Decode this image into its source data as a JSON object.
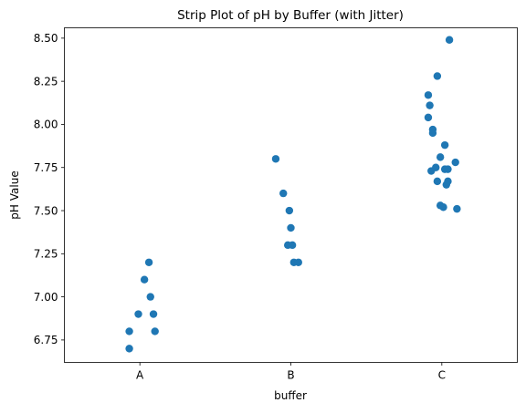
{
  "chart_data": {
    "type": "scatter",
    "title": "Strip Plot of pH by Buffer (with Jitter)",
    "xlabel": "buffer",
    "ylabel": "pH Value",
    "categories": [
      "A",
      "B",
      "C"
    ],
    "ylim": [
      6.62,
      8.56
    ],
    "yticks": [
      6.75,
      7.0,
      7.25,
      7.5,
      7.75,
      8.0,
      8.25,
      8.5
    ],
    "ytick_labels": [
      "6.75",
      "7.00",
      "7.25",
      "7.50",
      "7.75",
      "8.00",
      "8.25",
      "8.50"
    ],
    "grid": false,
    "point_color": "#1f77b4",
    "points": [
      {
        "category": "A",
        "jitter": -0.07,
        "y": 6.8
      },
      {
        "category": "A",
        "jitter": -0.07,
        "y": 6.7
      },
      {
        "category": "A",
        "jitter": -0.01,
        "y": 6.9
      },
      {
        "category": "A",
        "jitter": 0.03,
        "y": 7.1
      },
      {
        "category": "A",
        "jitter": 0.06,
        "y": 7.2
      },
      {
        "category": "A",
        "jitter": 0.07,
        "y": 7.0
      },
      {
        "category": "A",
        "jitter": 0.09,
        "y": 6.9
      },
      {
        "category": "A",
        "jitter": 0.1,
        "y": 6.8
      },
      {
        "category": "B",
        "jitter": -0.1,
        "y": 7.8
      },
      {
        "category": "B",
        "jitter": -0.05,
        "y": 7.6
      },
      {
        "category": "B",
        "jitter": -0.01,
        "y": 7.5
      },
      {
        "category": "B",
        "jitter": 0.0,
        "y": 7.4
      },
      {
        "category": "B",
        "jitter": -0.02,
        "y": 7.3
      },
      {
        "category": "B",
        "jitter": 0.01,
        "y": 7.3
      },
      {
        "category": "B",
        "jitter": 0.02,
        "y": 7.2
      },
      {
        "category": "B",
        "jitter": 0.05,
        "y": 7.2
      },
      {
        "category": "C",
        "jitter": 0.05,
        "y": 8.49
      },
      {
        "category": "C",
        "jitter": -0.03,
        "y": 8.28
      },
      {
        "category": "C",
        "jitter": -0.09,
        "y": 8.17
      },
      {
        "category": "C",
        "jitter": -0.08,
        "y": 8.11
      },
      {
        "category": "C",
        "jitter": -0.09,
        "y": 8.04
      },
      {
        "category": "C",
        "jitter": -0.06,
        "y": 7.97
      },
      {
        "category": "C",
        "jitter": -0.06,
        "y": 7.95
      },
      {
        "category": "C",
        "jitter": 0.02,
        "y": 7.88
      },
      {
        "category": "C",
        "jitter": -0.01,
        "y": 7.81
      },
      {
        "category": "C",
        "jitter": 0.09,
        "y": 7.78
      },
      {
        "category": "C",
        "jitter": -0.04,
        "y": 7.75
      },
      {
        "category": "C",
        "jitter": 0.02,
        "y": 7.74
      },
      {
        "category": "C",
        "jitter": 0.04,
        "y": 7.74
      },
      {
        "category": "C",
        "jitter": -0.07,
        "y": 7.73
      },
      {
        "category": "C",
        "jitter": -0.03,
        "y": 7.67
      },
      {
        "category": "C",
        "jitter": 0.04,
        "y": 7.67
      },
      {
        "category": "C",
        "jitter": 0.03,
        "y": 7.65
      },
      {
        "category": "C",
        "jitter": -0.01,
        "y": 7.53
      },
      {
        "category": "C",
        "jitter": 0.01,
        "y": 7.52
      },
      {
        "category": "C",
        "jitter": 0.1,
        "y": 7.51
      }
    ]
  }
}
